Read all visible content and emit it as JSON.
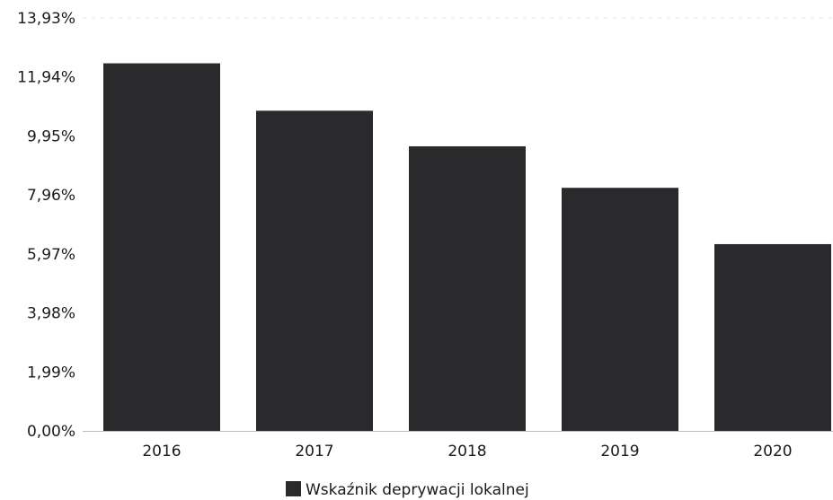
{
  "chart_data": {
    "type": "bar",
    "categories": [
      "2016",
      "2017",
      "2018",
      "2019",
      "2020"
    ],
    "series": [
      {
        "name": "Wskaźnik deprywacji lokalnej",
        "values": [
          12.4,
          10.8,
          9.6,
          8.2,
          6.3
        ]
      }
    ],
    "y_ticks": [
      "0,00%",
      "1,99%",
      "3,98%",
      "5,97%",
      "7,96%",
      "9,95%",
      "11,94%",
      "13,93%"
    ],
    "y_tick_values": [
      0,
      1.99,
      3.98,
      5.97,
      7.96,
      9.95,
      11.94,
      13.93
    ],
    "ylim": [
      0,
      13.93
    ],
    "bar_color": "#2a2a2c",
    "grid": false,
    "legend_position": "bottom-center"
  }
}
